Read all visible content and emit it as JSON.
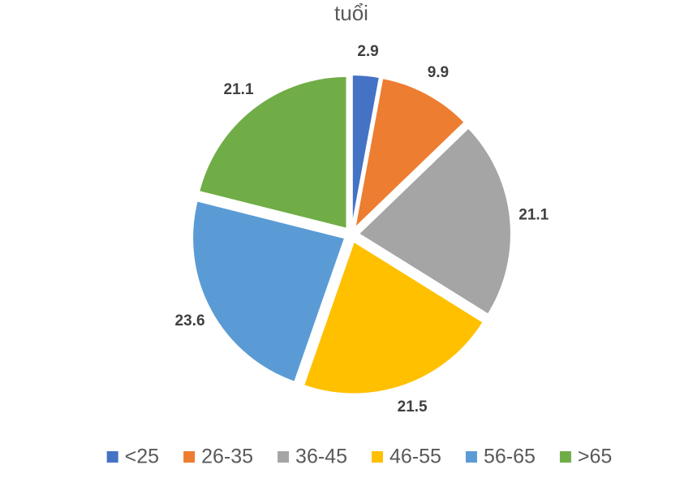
{
  "chart_data": {
    "type": "pie",
    "title": "tuổi",
    "categories": [
      "<25",
      "26-35",
      "36-45",
      "46-55",
      "56-65",
      ">65"
    ],
    "values": [
      2.9,
      9.9,
      21.1,
      21.5,
      23.6,
      21.1
    ],
    "colors": [
      "#4472c4",
      "#ed7d31",
      "#a5a5a5",
      "#ffc000",
      "#5b9bd5",
      "#70ad47"
    ],
    "legend": "bottom"
  }
}
